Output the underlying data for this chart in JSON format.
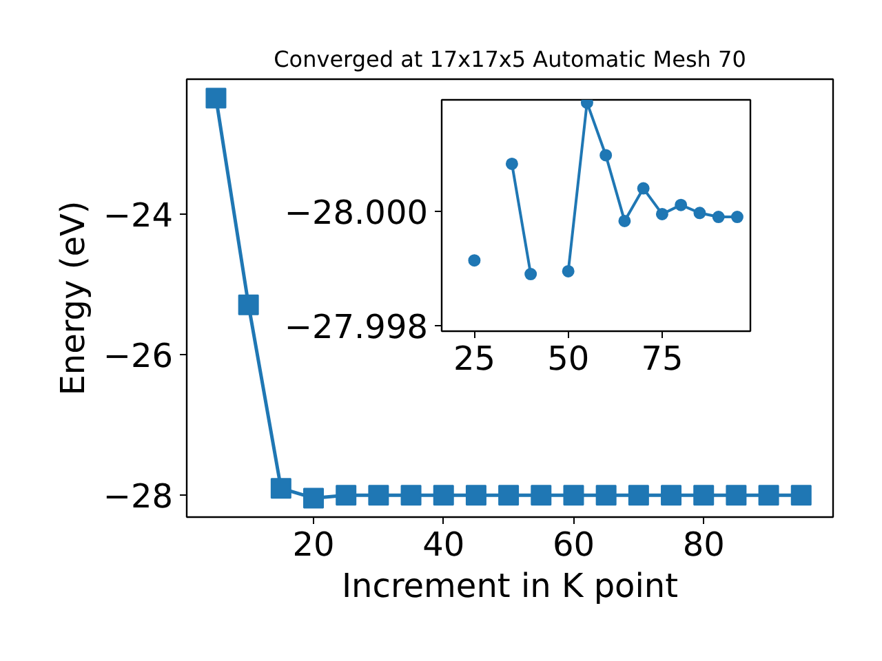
{
  "chart_data": [
    {
      "type": "line",
      "title": "Converged at 17x17x5 Automatic Mesh 70",
      "xlabel": "Increment in K point",
      "ylabel": "Energy (eV)",
      "x": [
        5,
        10,
        15,
        20,
        25,
        30,
        35,
        40,
        45,
        50,
        55,
        60,
        65,
        70,
        75,
        80,
        85,
        90,
        95
      ],
      "series": [
        {
          "color": "#1f77b4",
          "values": [
            -22.35,
            -25.29,
            -27.9,
            -28.04,
            -28.0,
            -28.0,
            -28.0,
            -28.0,
            -28.0,
            -28.0,
            -28.0,
            -28.0,
            -28.0,
            -28.0,
            -28.0,
            -28.0,
            -28.0,
            -28.0,
            -28.0
          ]
        }
      ],
      "marker": "square",
      "line_style": "solid",
      "grid": false,
      "xlim": [
        0.5,
        99.9
      ],
      "ylim": [
        -28.31,
        -22.08
      ],
      "xticks": [
        20,
        40,
        60,
        80
      ],
      "yticks": [
        {
          "value": -24,
          "label": "−24"
        },
        {
          "value": -26,
          "label": "−26"
        },
        {
          "value": -28,
          "label": "−28"
        }
      ]
    },
    {
      "type": "line",
      "x": [
        25,
        30,
        35,
        40,
        45,
        50,
        55,
        60,
        65,
        70,
        75,
        80,
        85,
        90,
        95
      ],
      "series": [
        {
          "color": "#1f77b4",
          "values": [
            -27.99914,
            null,
            -28.00083,
            -27.9989,
            null,
            -27.99895,
            -28.0019,
            -28.00098,
            -27.99983,
            -28.0004,
            -27.99995,
            -28.00011,
            -27.99997,
            -27.9999,
            -27.9999
          ]
        }
      ],
      "marker": "circle",
      "line_style": "solid",
      "grid": false,
      "xlim": [
        16.3,
        98.5
      ],
      "ylim": [
        -27.9979,
        -28.00195
      ],
      "xticks": [
        25,
        50,
        75
      ],
      "yticks": [
        {
          "value": -28.0,
          "label": "−28.000"
        },
        {
          "value": -27.998,
          "label": "−27.998"
        }
      ]
    }
  ]
}
